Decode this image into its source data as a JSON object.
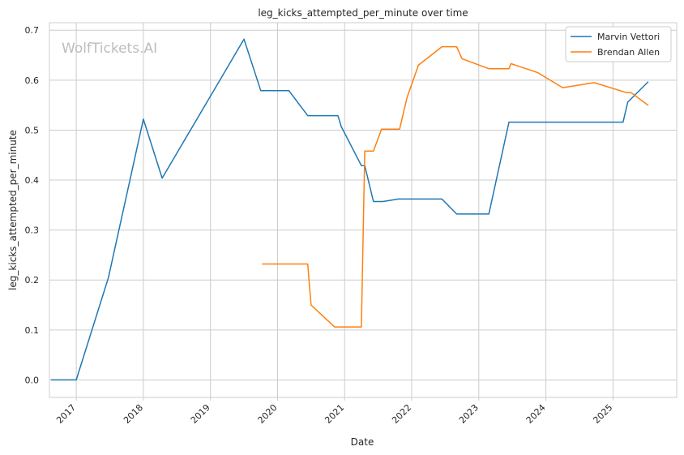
{
  "chart_data": {
    "type": "line",
    "title": "leg_kicks_attempted_per_minute over time",
    "xlabel": "Date",
    "ylabel": "leg_kicks_attempted_per_minute",
    "watermark": "WolfTickets.AI",
    "xlim": [
      2016.6,
      2025.95
    ],
    "ylim": [
      -0.035,
      0.715
    ],
    "x_ticks": [
      {
        "value": 2017,
        "label": "2017"
      },
      {
        "value": 2018,
        "label": "2018"
      },
      {
        "value": 2019,
        "label": "2019"
      },
      {
        "value": 2020,
        "label": "2020"
      },
      {
        "value": 2021,
        "label": "2021"
      },
      {
        "value": 2022,
        "label": "2022"
      },
      {
        "value": 2023,
        "label": "2023"
      },
      {
        "value": 2024,
        "label": "2024"
      },
      {
        "value": 2025,
        "label": "2025"
      }
    ],
    "y_ticks": [
      {
        "value": 0.0,
        "label": "0.0"
      },
      {
        "value": 0.1,
        "label": "0.1"
      },
      {
        "value": 0.2,
        "label": "0.2"
      },
      {
        "value": 0.3,
        "label": "0.3"
      },
      {
        "value": 0.4,
        "label": "0.4"
      },
      {
        "value": 0.5,
        "label": "0.5"
      },
      {
        "value": 0.6,
        "label": "0.6"
      },
      {
        "value": 0.7,
        "label": "0.7"
      }
    ],
    "grid": true,
    "legend_position": "top-right",
    "series": [
      {
        "name": "Marvin Vettori",
        "color": "#1f77b4",
        "points": [
          [
            2016.63,
            0.0
          ],
          [
            2017.0,
            0.0
          ],
          [
            2017.48,
            0.205
          ],
          [
            2018.0,
            0.522
          ],
          [
            2018.28,
            0.404
          ],
          [
            2019.5,
            0.682
          ],
          [
            2019.75,
            0.579
          ],
          [
            2020.17,
            0.579
          ],
          [
            2020.45,
            0.529
          ],
          [
            2020.9,
            0.529
          ],
          [
            2020.95,
            0.507
          ],
          [
            2021.25,
            0.429
          ],
          [
            2021.3,
            0.429
          ],
          [
            2021.43,
            0.357
          ],
          [
            2021.57,
            0.357
          ],
          [
            2021.8,
            0.362
          ],
          [
            2022.45,
            0.362
          ],
          [
            2022.67,
            0.332
          ],
          [
            2023.15,
            0.332
          ],
          [
            2023.45,
            0.516
          ],
          [
            2025.15,
            0.516
          ],
          [
            2025.22,
            0.556
          ],
          [
            2025.52,
            0.596
          ]
        ]
      },
      {
        "name": "Brendan Allen",
        "color": "#ff7f0e",
        "points": [
          [
            2019.78,
            0.232
          ],
          [
            2020.45,
            0.232
          ],
          [
            2020.5,
            0.15
          ],
          [
            2020.85,
            0.106
          ],
          [
            2021.25,
            0.106
          ],
          [
            2021.3,
            0.458
          ],
          [
            2021.43,
            0.458
          ],
          [
            2021.55,
            0.502
          ],
          [
            2021.82,
            0.502
          ],
          [
            2021.93,
            0.565
          ],
          [
            2022.1,
            0.63
          ],
          [
            2022.45,
            0.667
          ],
          [
            2022.67,
            0.667
          ],
          [
            2022.75,
            0.643
          ],
          [
            2023.15,
            0.623
          ],
          [
            2023.45,
            0.623
          ],
          [
            2023.48,
            0.633
          ],
          [
            2023.88,
            0.615
          ],
          [
            2024.25,
            0.585
          ],
          [
            2024.72,
            0.595
          ],
          [
            2025.2,
            0.575
          ],
          [
            2025.27,
            0.575
          ],
          [
            2025.52,
            0.55
          ]
        ]
      }
    ]
  }
}
